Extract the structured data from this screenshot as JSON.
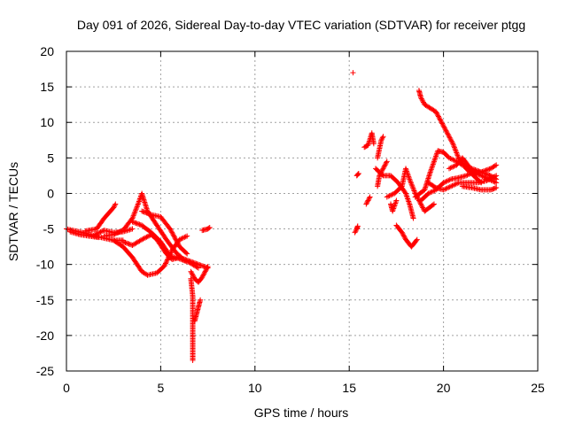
{
  "chart_data": {
    "type": "scatter",
    "title": "Day 091 of 2026, Sidereal Day-to-day VTEC variation (SDTVAR) for receiver ptgg",
    "xlabel": "GPS time / hours",
    "ylabel": "SDTVAR / TECUs",
    "xlim": [
      0,
      25
    ],
    "ylim": [
      -25,
      20
    ],
    "xticks": [
      "0",
      "5",
      "10",
      "15",
      "20",
      "25"
    ],
    "yticks": [
      "20",
      "15",
      "10",
      "5",
      "0",
      "-5",
      "-10",
      "-15",
      "-20",
      "-25"
    ],
    "grid": true,
    "marker": "+",
    "series": [
      {
        "name": "SDTVAR",
        "color": "#ff0000",
        "segments": [
          [
            [
              0.0,
              -5.0
            ],
            [
              0.5,
              -5.3
            ],
            [
              1.0,
              -5.6
            ],
            [
              1.5,
              -6.0
            ],
            [
              2.0,
              -6.3
            ],
            [
              2.5,
              -6.6
            ],
            [
              3.0,
              -6.6
            ]
          ],
          [
            [
              0.2,
              -5.4
            ],
            [
              0.7,
              -5.8
            ],
            [
              1.2,
              -6.0
            ],
            [
              1.7,
              -6.2
            ]
          ],
          [
            [
              1.0,
              -5.3
            ],
            [
              1.6,
              -5.0
            ],
            [
              2.0,
              -3.5
            ],
            [
              2.5,
              -2.0
            ],
            [
              2.6,
              -1.5
            ]
          ],
          [
            [
              1.5,
              -5.8
            ],
            [
              2.0,
              -5.2
            ],
            [
              2.5,
              -5.5
            ],
            [
              3.0,
              -5.4
            ],
            [
              3.5,
              -5.0
            ]
          ],
          [
            [
              2.0,
              -6.0
            ],
            [
              2.5,
              -5.8
            ],
            [
              3.0,
              -5.2
            ],
            [
              3.5,
              -3.5
            ],
            [
              3.8,
              -1.5
            ],
            [
              4.0,
              0.0
            ],
            [
              4.3,
              -2.5
            ],
            [
              4.8,
              -4.5
            ],
            [
              5.3,
              -6.5
            ],
            [
              5.8,
              -8.3
            ],
            [
              6.3,
              -9.5
            ]
          ],
          [
            [
              2.5,
              -6.6
            ],
            [
              3.0,
              -7.5
            ],
            [
              3.5,
              -9.0
            ],
            [
              4.0,
              -11.0
            ],
            [
              4.3,
              -11.5
            ],
            [
              4.8,
              -11.2
            ],
            [
              5.2,
              -10.2
            ],
            [
              5.6,
              -8.0
            ],
            [
              6.0,
              -6.5
            ],
            [
              6.4,
              -6.0
            ]
          ],
          [
            [
              3.0,
              -6.8
            ],
            [
              3.5,
              -7.3
            ],
            [
              4.0,
              -6.5
            ],
            [
              4.5,
              -5.8
            ],
            [
              4.8,
              -6.5
            ],
            [
              5.3,
              -8.5
            ],
            [
              5.6,
              -9.3
            ],
            [
              6.0,
              -9.0
            ],
            [
              6.5,
              -9.5
            ],
            [
              7.0,
              -10.0
            ],
            [
              7.5,
              -10.5
            ]
          ],
          [
            [
              3.5,
              -4.0
            ],
            [
              4.0,
              -4.5
            ],
            [
              4.5,
              -5.5
            ],
            [
              5.0,
              -6.8
            ],
            [
              5.5,
              -8.8
            ],
            [
              6.0,
              -9.2
            ],
            [
              6.5,
              -9.7
            ],
            [
              7.0,
              -10.5
            ]
          ],
          [
            [
              4.0,
              -2.5
            ],
            [
              4.5,
              -3.0
            ],
            [
              5.0,
              -3.3
            ],
            [
              5.5,
              -5.0
            ],
            [
              6.0,
              -7.5
            ],
            [
              6.4,
              -8.5
            ]
          ],
          [
            [
              6.6,
              -11.0
            ],
            [
              6.8,
              -12.0
            ],
            [
              7.0,
              -12.5
            ],
            [
              7.2,
              -11.8
            ],
            [
              7.5,
              -10.3
            ]
          ],
          [
            [
              6.6,
              -12.0
            ],
            [
              6.7,
              -14.5
            ],
            [
              6.7,
              -17.0
            ],
            [
              6.7,
              -19.5
            ],
            [
              6.7,
              -22.0
            ],
            [
              6.7,
              -23.5
            ]
          ],
          [
            [
              6.8,
              -18.0
            ],
            [
              6.9,
              -17.0
            ],
            [
              7.0,
              -16.0
            ],
            [
              7.1,
              -15.0
            ]
          ],
          [
            [
              7.2,
              -5.2
            ],
            [
              7.5,
              -5.0
            ],
            [
              7.6,
              -4.8
            ]
          ],
          [
            [
              15.2,
              17.0
            ]
          ],
          [
            [
              15.3,
              -5.5
            ],
            [
              15.4,
              -5.0
            ],
            [
              15.45,
              -4.6
            ]
          ],
          [
            [
              15.4,
              2.5
            ],
            [
              15.5,
              2.8
            ]
          ],
          [
            [
              15.9,
              -1.5
            ],
            [
              16.0,
              -1.0
            ],
            [
              16.1,
              -0.5
            ]
          ],
          [
            [
              15.8,
              6.5
            ],
            [
              16.0,
              6.8
            ],
            [
              16.2,
              8.5
            ],
            [
              16.3,
              7.0
            ]
          ],
          [
            [
              16.5,
              5.0
            ],
            [
              16.7,
              7.5
            ],
            [
              16.8,
              8.0
            ]
          ],
          [
            [
              16.5,
              1.0
            ],
            [
              16.6,
              2.5
            ],
            [
              16.8,
              3.5
            ],
            [
              17.0,
              4.5
            ]
          ],
          [
            [
              17.2,
              -1.5
            ],
            [
              17.3,
              -2.5
            ],
            [
              17.5,
              -1.0
            ]
          ],
          [
            [
              16.4,
              3.5
            ],
            [
              16.8,
              2.5
            ],
            [
              17.2,
              2.5
            ],
            [
              17.6,
              1.5
            ],
            [
              18.0,
              0.0
            ],
            [
              18.2,
              -1.5
            ],
            [
              18.4,
              -3.5
            ]
          ],
          [
            [
              17.5,
              -4.5
            ],
            [
              17.8,
              -5.5
            ],
            [
              18.0,
              -6.5
            ],
            [
              18.3,
              -7.5
            ],
            [
              18.6,
              -6.5
            ]
          ],
          [
            [
              17.0,
              -0.5
            ],
            [
              17.4,
              0.0
            ],
            [
              17.8,
              1.0
            ],
            [
              18.0,
              3.5
            ],
            [
              18.2,
              2.0
            ],
            [
              18.5,
              0.0
            ],
            [
              18.8,
              -1.5
            ],
            [
              19.0,
              -2.5
            ],
            [
              19.5,
              -1.5
            ]
          ],
          [
            [
              18.7,
              14.5
            ],
            [
              18.8,
              13.5
            ],
            [
              19.0,
              12.5
            ],
            [
              19.3,
              12.0
            ],
            [
              19.6,
              11.5
            ],
            [
              19.9,
              10.0
            ],
            [
              20.2,
              8.5
            ],
            [
              20.5,
              7.0
            ],
            [
              20.8,
              5.0
            ],
            [
              21.2,
              3.5
            ],
            [
              21.6,
              2.5
            ]
          ],
          [
            [
              18.5,
              -0.5
            ],
            [
              19.0,
              0.5
            ],
            [
              19.3,
              3.0
            ],
            [
              19.5,
              4.5
            ],
            [
              19.7,
              6.0
            ],
            [
              20.0,
              5.8
            ],
            [
              20.3,
              5.0
            ],
            [
              20.7,
              4.5
            ],
            [
              21.0,
              4.0
            ],
            [
              21.5,
              3.5
            ],
            [
              22.0,
              3.0
            ],
            [
              22.5,
              2.5
            ],
            [
              22.8,
              2.0
            ]
          ],
          [
            [
              18.8,
              -1.0
            ],
            [
              19.2,
              0.0
            ],
            [
              19.6,
              0.5
            ],
            [
              20.0,
              1.5
            ],
            [
              20.4,
              2.0
            ],
            [
              20.8,
              2.2
            ],
            [
              21.2,
              2.5
            ],
            [
              21.6,
              3.0
            ],
            [
              22.0,
              2.5
            ],
            [
              22.4,
              2.0
            ],
            [
              22.8,
              1.5
            ]
          ],
          [
            [
              19.2,
              1.5
            ],
            [
              19.6,
              0.8
            ],
            [
              20.0,
              0.5
            ],
            [
              20.4,
              1.0
            ],
            [
              20.8,
              1.5
            ],
            [
              21.3,
              1.5
            ],
            [
              21.8,
              1.5
            ],
            [
              22.3,
              1.8
            ],
            [
              22.8,
              2.5
            ]
          ],
          [
            [
              20.3,
              3.5
            ],
            [
              20.7,
              4.0
            ],
            [
              21.0,
              5.0
            ],
            [
              21.3,
              4.0
            ],
            [
              21.6,
              2.5
            ],
            [
              22.0,
              1.5
            ]
          ],
          [
            [
              21.5,
              2.8
            ],
            [
              22.0,
              3.0
            ],
            [
              22.5,
              3.5
            ],
            [
              22.8,
              4.0
            ]
          ],
          [
            [
              21.0,
              1.0
            ],
            [
              21.5,
              0.8
            ],
            [
              22.0,
              0.5
            ],
            [
              22.5,
              0.5
            ],
            [
              22.8,
              0.8
            ]
          ]
        ]
      }
    ]
  }
}
